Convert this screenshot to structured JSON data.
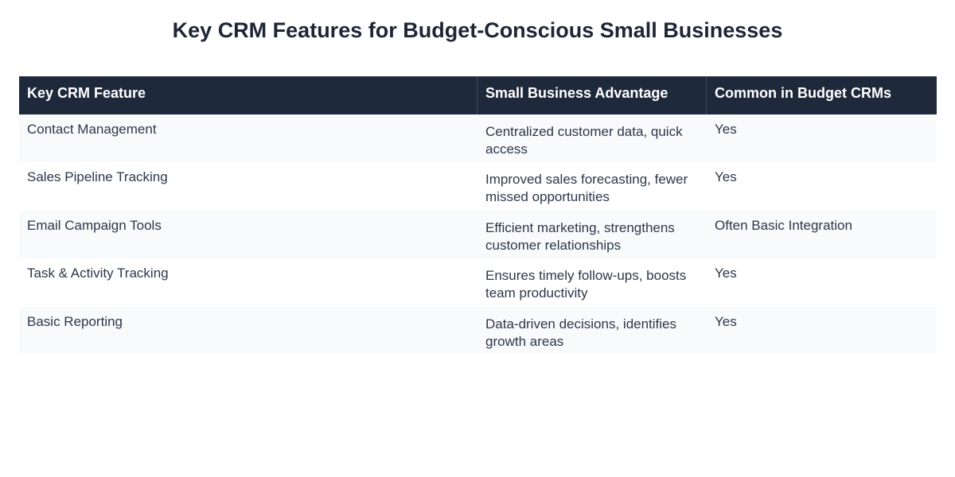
{
  "title": "Key CRM Features for Budget-Conscious Small Businesses",
  "table": {
    "headers": [
      "Key CRM Feature",
      "Small Business Advantage",
      "Common in Budget CRMs"
    ],
    "rows": [
      [
        "Contact Management",
        "Centralized customer data, quick access",
        "Yes"
      ],
      [
        "Sales Pipeline Tracking",
        "Improved sales forecasting, fewer missed opportunities",
        "Yes"
      ],
      [
        "Email Campaign Tools",
        "Efficient marketing, strengthens customer relationships",
        "Often Basic Integration"
      ],
      [
        "Task & Activity Tracking",
        "Ensures timely follow-ups, boosts team productivity",
        "Yes"
      ],
      [
        "Basic Reporting",
        "Data-driven decisions, identifies growth areas",
        "Yes"
      ]
    ]
  },
  "colors": {
    "header_bg": "#1e293b",
    "header_text": "#ffffff",
    "row_alt_bg": "#f8fafc",
    "title_text": "#1e2535"
  }
}
